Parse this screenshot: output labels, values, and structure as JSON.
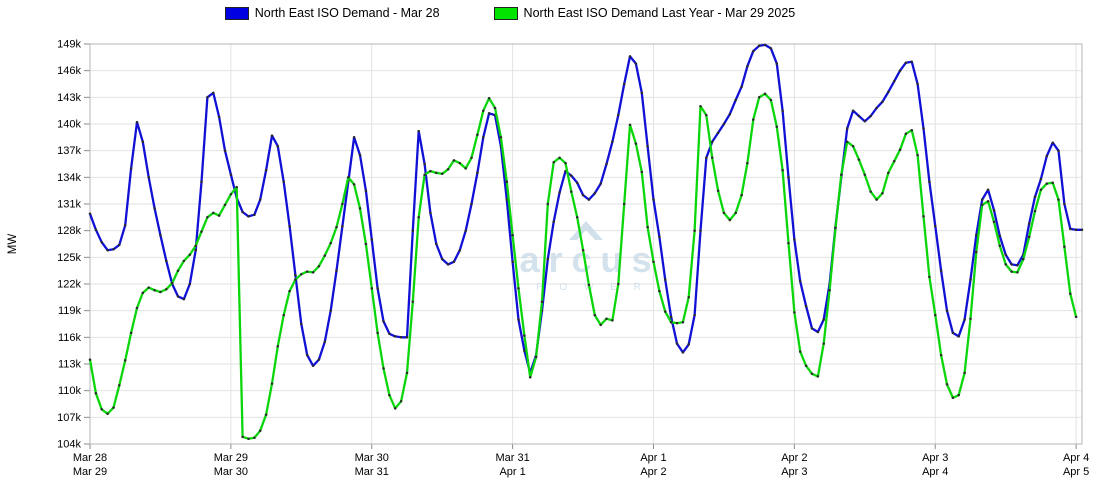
{
  "chart_data": {
    "type": "line",
    "title": "",
    "ylabel": "MW",
    "y_axis": {
      "min": 104,
      "max": 149,
      "step": 3,
      "unit_suffix": "k",
      "tick_labels": [
        "104k",
        "107k",
        "110k",
        "113k",
        "116k",
        "119k",
        "122k",
        "125k",
        "128k",
        "131k",
        "134k",
        "137k",
        "140k",
        "143k",
        "146k",
        "149k"
      ]
    },
    "x_axis": {
      "domain_hours": 169,
      "hours_per_day": 24,
      "top_labels": [
        "Mar 28",
        "Mar 29",
        "Mar 30",
        "Mar 31",
        "Apr 1",
        "Apr 2",
        "Apr 3",
        "Apr 4"
      ],
      "bottom_labels": [
        "Mar 29",
        "Mar 30",
        "Mar 31",
        "Apr 1",
        "Apr 2",
        "Apr 3",
        "Apr 4",
        "Apr 5"
      ]
    },
    "grid": true,
    "legend_position": "top-center",
    "marker_color": "#2b2b2b",
    "grid_color": "#e2e2e2",
    "border_color": "#b5b5b5",
    "tick_color": "#8a8a8a",
    "text_color": "#000000",
    "series": [
      {
        "name": "North East ISO Demand - Mar 28",
        "color": "#1111d6",
        "swatch_color": "#0000e0",
        "values_k": [
          129.9,
          128.1,
          126.7,
          125.8,
          125.9,
          126.4,
          128.6,
          135.0,
          140.2,
          138.0,
          134.0,
          130.5,
          127.5,
          124.6,
          122.0,
          120.6,
          120.3,
          122.0,
          125.8,
          133.5,
          143.0,
          143.5,
          140.8,
          137.0,
          134.3,
          131.7,
          130.1,
          129.6,
          129.8,
          131.5,
          134.8,
          138.7,
          137.5,
          133.5,
          128.5,
          123.0,
          117.5,
          114.0,
          112.8,
          113.5,
          115.5,
          119.0,
          123.5,
          128.5,
          133.5,
          138.5,
          136.5,
          132.5,
          127.0,
          121.5,
          117.8,
          116.4,
          116.1,
          116.0,
          116.0,
          128.0,
          139.2,
          135.5,
          130.0,
          126.5,
          124.8,
          124.2,
          124.5,
          125.8,
          128.0,
          131.0,
          134.5,
          138.5,
          141.2,
          141.0,
          137.5,
          131.5,
          124.5,
          118.0,
          114.5,
          112.0,
          114.0,
          119.0,
          124.8,
          129.0,
          132.3,
          134.7,
          134.2,
          133.4,
          132.0,
          131.5,
          132.2,
          133.3,
          135.5,
          138.0,
          141.0,
          144.5,
          147.6,
          146.8,
          143.5,
          137.5,
          131.5,
          127.3,
          122.5,
          118.3,
          115.3,
          114.3,
          115.2,
          118.5,
          128.0,
          136.2,
          138.0,
          139.0,
          140.0,
          141.1,
          142.7,
          144.2,
          146.5,
          148.2,
          148.8,
          148.9,
          148.5,
          146.8,
          141.5,
          134.0,
          127.0,
          122.3,
          119.5,
          117.0,
          116.6,
          118.0,
          122.0,
          128.5,
          134.0,
          139.5,
          141.5,
          140.9,
          140.3,
          140.9,
          141.8,
          142.5,
          143.6,
          144.8,
          146.0,
          146.9,
          147.0,
          144.5,
          139.5,
          133.5,
          128.5,
          123.5,
          119.0,
          116.5,
          116.1,
          118.0,
          122.5,
          127.5,
          131.5,
          132.6,
          130.3,
          127.4,
          125.3,
          124.2,
          124.1,
          125.3,
          128.8,
          131.8,
          133.8,
          136.4,
          137.9,
          137.0,
          131.0,
          128.2,
          128.1,
          128.1
        ]
      },
      {
        "name": "North East ISO Demand Last Year - Mar 29 2025",
        "color": "#0bd60b",
        "swatch_color": "#00e400",
        "values_k": [
          113.5,
          109.7,
          107.9,
          107.4,
          108.1,
          110.6,
          113.4,
          116.5,
          119.3,
          121.0,
          121.6,
          121.3,
          121.1,
          121.4,
          122.1,
          123.5,
          124.6,
          125.3,
          126.3,
          127.9,
          129.5,
          130.0,
          129.7,
          130.9,
          132.1,
          132.9,
          104.8,
          104.6,
          104.7,
          105.5,
          107.3,
          110.8,
          115.0,
          118.5,
          121.2,
          122.5,
          123.1,
          123.4,
          123.3,
          124.0,
          125.2,
          126.6,
          128.4,
          131.0,
          134.0,
          133.2,
          130.5,
          126.5,
          121.5,
          116.5,
          112.5,
          109.5,
          108.0,
          108.8,
          112.0,
          120.0,
          129.5,
          134.3,
          134.7,
          134.5,
          134.4,
          134.9,
          135.9,
          135.6,
          135.0,
          136.2,
          138.8,
          141.5,
          142.9,
          141.8,
          138.5,
          133.5,
          127.5,
          121.5,
          116.2,
          111.5,
          113.8,
          120.0,
          131.0,
          135.7,
          136.2,
          135.6,
          132.4,
          129.5,
          125.8,
          121.9,
          118.5,
          117.4,
          118.1,
          117.9,
          122.0,
          131.0,
          139.9,
          137.8,
          134.6,
          128.4,
          124.5,
          121.2,
          118.9,
          117.7,
          117.6,
          117.7,
          120.5,
          128.0,
          142.0,
          141.0,
          136.2,
          132.5,
          130.0,
          129.2,
          130.0,
          132.0,
          135.6,
          140.5,
          143.0,
          143.4,
          142.7,
          139.7,
          134.8,
          126.6,
          118.8,
          114.4,
          112.8,
          111.9,
          111.6,
          115.3,
          121.3,
          128.3,
          134.3,
          138.0,
          137.5,
          136.0,
          134.3,
          132.4,
          131.5,
          132.2,
          134.5,
          135.8,
          137.1,
          138.9,
          139.3,
          136.5,
          129.6,
          122.8,
          118.5,
          114.0,
          110.7,
          109.2,
          109.5,
          112.0,
          118.1,
          125.6,
          130.9,
          131.3,
          129.0,
          126.3,
          124.2,
          123.4,
          123.3,
          124.8,
          127.3,
          130.2,
          132.6,
          133.3,
          133.4,
          131.5,
          126.2,
          120.9,
          118.3
        ]
      }
    ],
    "watermark": {
      "title": "arcus",
      "subtitle": "P O W E R",
      "color": "#c9dbe8"
    }
  }
}
